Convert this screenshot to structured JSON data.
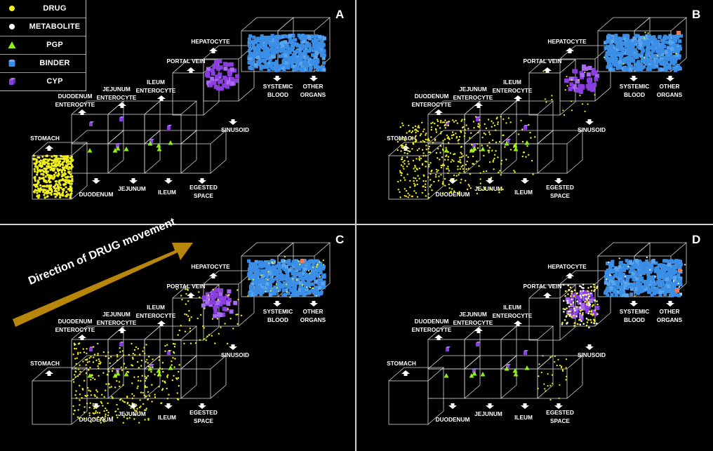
{
  "legend": [
    {
      "label": "DRUG",
      "symbol": "yellow-circle",
      "color": "#f2f01c"
    },
    {
      "label": "METABOLITE",
      "symbol": "white-circle",
      "color": "#ffffff"
    },
    {
      "label": "PGP",
      "symbol": "green-triangle",
      "color": "#8ef018"
    },
    {
      "label": "BINDER",
      "symbol": "blue-cylinder",
      "color": "#3b8ee6"
    },
    {
      "label": "CYP",
      "symbol": "purple-cube",
      "color": "#8b3ee0"
    }
  ],
  "panels": [
    "A",
    "B",
    "C",
    "D"
  ],
  "compartments": {
    "stomach": "STOMACH",
    "duodenum_enterocyte": [
      "DUODENUM",
      "ENTEROCYTE"
    ],
    "jejunum_enterocyte": [
      "JEJUNUM",
      "ENTEROCYTE"
    ],
    "ileum_enterocyte": [
      "ILEUM",
      "ENTEROCYTE"
    ],
    "portal_vein": "PORTAL VEIN",
    "hepatocyte": "HEPATOCYTE",
    "systemic_blood": [
      "SYSTEMIC",
      "BLOOD"
    ],
    "other_organs": [
      "OTHER",
      "ORGANS"
    ],
    "sinusoid": "SINUSOID",
    "duodenum": "DUODENUM",
    "jejunum": "JEJUNUM",
    "ileum": "ILEUM",
    "egested_space": [
      "EGESTED",
      "SPACE"
    ]
  },
  "direction_label": "Direction of DRUG movement",
  "colors": {
    "drug": "#f2f01c",
    "metabolite": "#ffffff",
    "pgp": "#8ef018",
    "binder": "#3b8ee6",
    "cyp": "#8b3ee0",
    "arrow": "#b8860b",
    "marker": "#f07a50"
  }
}
